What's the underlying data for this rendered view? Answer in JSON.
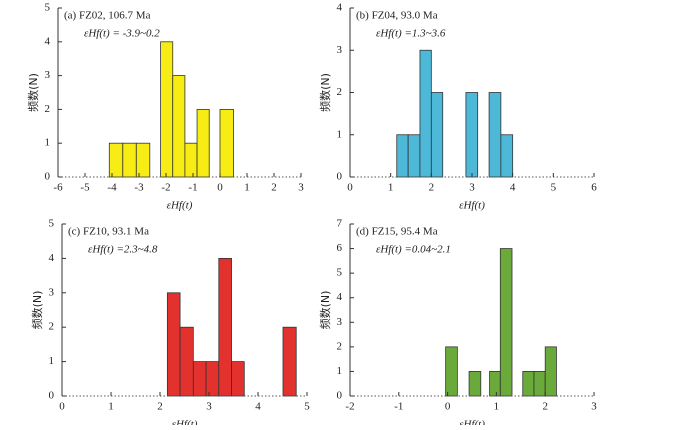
{
  "chart_data": [
    {
      "type": "histogram",
      "title": "(a) FZ02, 106.7 Ma",
      "subtitle": "εHf(t) = -3.9~0.2",
      "x_label": "εHf(t)",
      "y_label": "频数(N)",
      "bins": [
        -4.1,
        -3.6,
        -3.1,
        -2.6,
        -2.2,
        -1.75,
        -1.3,
        -0.85,
        -0.4,
        0,
        0.5
      ],
      "values": [
        1,
        1,
        1,
        0,
        4,
        3,
        1,
        2,
        0,
        2
      ],
      "color": "#f7ec13",
      "xlim": [
        -6,
        3
      ],
      "xticks": [
        -6,
        -5,
        -4,
        -3,
        -2,
        -1,
        0,
        1,
        2,
        3
      ],
      "ylim": [
        0,
        5
      ],
      "yticks": [
        0,
        1,
        2,
        3,
        4,
        5
      ]
    },
    {
      "type": "histogram",
      "title": "(b) FZ04, 93.0 Ma",
      "subtitle": "εHf(t) =1.3~3.6",
      "x_label": "εHf(t)",
      "y_label": "频数(N)",
      "bins": [
        1.15,
        1.43,
        1.72,
        2.0,
        2.28,
        2.57,
        2.85,
        3.14,
        3.42,
        3.71,
        4.0
      ],
      "values": [
        1,
        1,
        3,
        2,
        0,
        0,
        2,
        0,
        2,
        1
      ],
      "color": "#4db8d8",
      "xlim": [
        0,
        6
      ],
      "xticks": [
        0,
        1,
        2,
        3,
        4,
        5,
        6
      ],
      "ylim": [
        0,
        4
      ],
      "yticks": [
        0,
        1,
        2,
        3,
        4
      ]
    },
    {
      "type": "histogram",
      "title": "(c) FZ10, 93.1 Ma",
      "subtitle": "εHf(t) =2.3~4.8",
      "x_label": "εHf(t)",
      "y_label": "频数(N)",
      "bins": [
        2.15,
        2.41,
        2.68,
        2.94,
        3.2,
        3.46,
        3.72,
        3.98,
        4.25,
        4.51,
        4.78
      ],
      "values": [
        3,
        2,
        1,
        1,
        4,
        1,
        0,
        0,
        0,
        2
      ],
      "color": "#e3312d",
      "xlim": [
        0,
        5
      ],
      "xticks": [
        0,
        1,
        2,
        3,
        4,
        5
      ],
      "ylim": [
        0,
        5
      ],
      "yticks": [
        0,
        1,
        2,
        3,
        4,
        5
      ]
    },
    {
      "type": "histogram",
      "title": "(d) FZ15, 95.4 Ma",
      "subtitle": "εHf(t) =0.04~2.1",
      "x_label": "εHf(t)",
      "y_label": "频数(N)",
      "bins": [
        -0.04,
        0.2,
        0.44,
        0.68,
        0.86,
        1.08,
        1.32,
        1.54,
        1.77,
        2.0,
        2.23
      ],
      "values": [
        2,
        0,
        1,
        0,
        1,
        6,
        0,
        1,
        1,
        2
      ],
      "color": "#6aaa3a",
      "xlim": [
        -2,
        3
      ],
      "xticks": [
        -2,
        -1,
        0,
        1,
        2,
        3
      ],
      "ylim": [
        0,
        7
      ],
      "yticks": [
        0,
        1,
        2,
        3,
        4,
        5,
        6,
        7
      ]
    }
  ]
}
